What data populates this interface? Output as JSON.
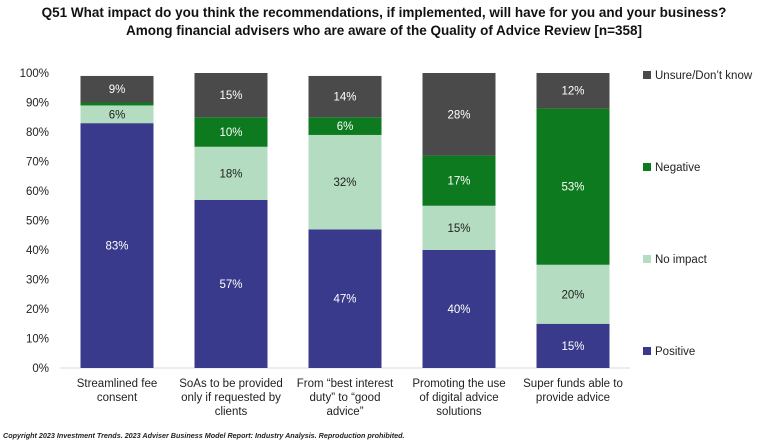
{
  "title_line1": "Q51 What impact do you think the recommendations, if implemented, will have for you and your business?",
  "title_line2": "Among financial advisers who are aware of the Quality of Advice Review [n=358]",
  "copyright": "Copyright 2023 Investment Trends. 2023 Adviser Business Model Report: Industry Analysis. Reproduction prohibited.",
  "chart_data": {
    "type": "bar",
    "stacked": true,
    "categories": [
      [
        "Streamlined fee",
        "consent"
      ],
      [
        "SoAs to be provided",
        "only if requested by",
        "clients"
      ],
      [
        "From “best interest",
        "duty” to “good",
        "advice”"
      ],
      [
        "Promoting the use",
        "of digital advice",
        "solutions"
      ],
      [
        "Super funds able to",
        "provide advice"
      ]
    ],
    "series": [
      {
        "name": "Positive",
        "color": "#3a3a8c",
        "values": [
          83,
          57,
          47,
          40,
          15
        ],
        "labels": [
          "83%",
          "57%",
          "47%",
          "40%",
          "15%"
        ]
      },
      {
        "name": "No impact",
        "color": "#b3dcc0",
        "values": [
          6,
          18,
          32,
          15,
          20
        ],
        "labels": [
          "6%",
          "18%",
          "32%",
          "15%",
          "20%"
        ]
      },
      {
        "name": "Negative",
        "color": "#0d7a1f",
        "values": [
          1,
          10,
          6,
          17,
          53
        ],
        "labels": [
          "",
          "10%",
          "6%",
          "17%",
          "53%"
        ]
      },
      {
        "name": "Unsure/Don’t know",
        "color": "#4a4a4a",
        "values": [
          9,
          15,
          14,
          28,
          12
        ],
        "labels": [
          "9%",
          "15%",
          "14%",
          "28%",
          "12%"
        ]
      }
    ],
    "yticks": [
      "0%",
      "10%",
      "20%",
      "30%",
      "40%",
      "50%",
      "60%",
      "70%",
      "80%",
      "90%",
      "100%"
    ],
    "ylim": [
      0,
      100
    ],
    "grid": false,
    "legend_placement": "right",
    "legend_order": [
      "Unsure/Don’t know",
      "Negative",
      "No impact",
      "Positive"
    ]
  }
}
